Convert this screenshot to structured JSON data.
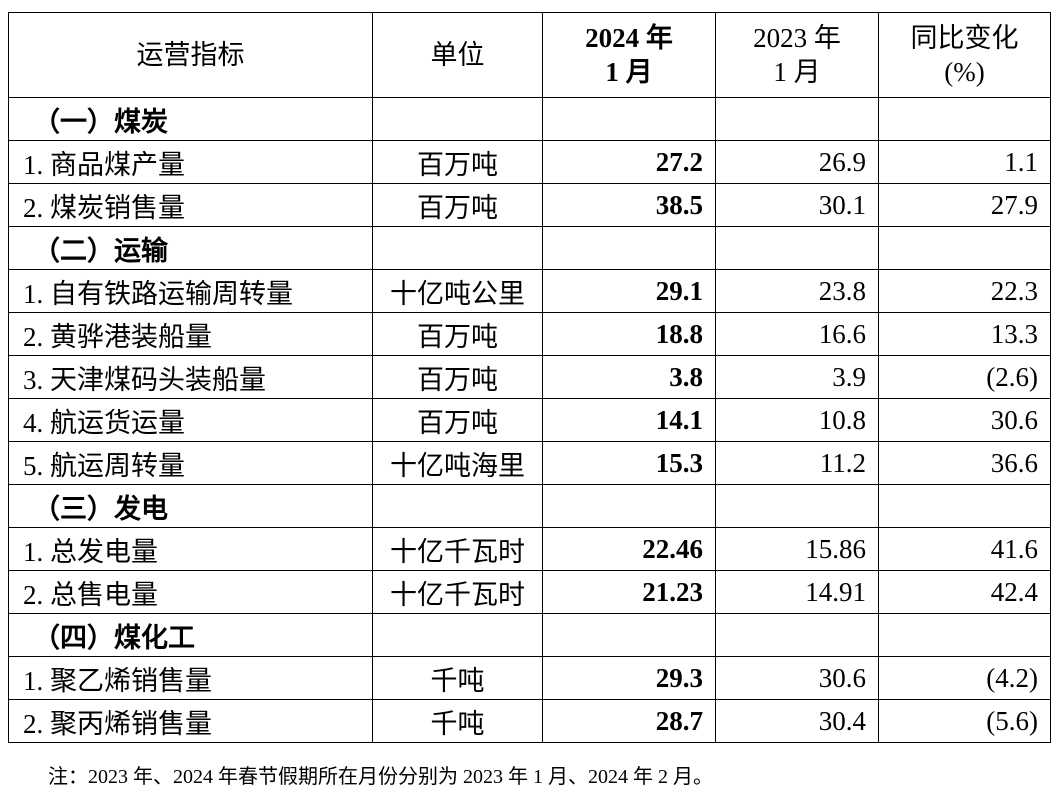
{
  "table": {
    "header": [
      [
        "运营指标"
      ],
      [
        "单位"
      ],
      [
        "2024 年",
        "1 月"
      ],
      [
        "2023 年",
        "1 月"
      ],
      [
        "同比变化",
        "(%)"
      ]
    ],
    "rows": [
      {
        "section": "（一）煤炭"
      },
      {
        "cells": [
          "1. 商品煤产量",
          "百万吨",
          "27.2",
          "26.9",
          "1.1"
        ]
      },
      {
        "cells": [
          "2. 煤炭销售量",
          "百万吨",
          "38.5",
          "30.1",
          "27.9"
        ]
      },
      {
        "section": "（二）运输"
      },
      {
        "cells": [
          "1. 自有铁路运输周转量",
          "十亿吨公里",
          "29.1",
          "23.8",
          "22.3"
        ]
      },
      {
        "cells": [
          "2. 黄骅港装船量",
          "百万吨",
          "18.8",
          "16.6",
          "13.3"
        ]
      },
      {
        "cells": [
          "3. 天津煤码头装船量",
          "百万吨",
          "3.8",
          "3.9",
          "(2.6)"
        ]
      },
      {
        "cells": [
          "4. 航运货运量",
          "百万吨",
          "14.1",
          "10.8",
          "30.6"
        ]
      },
      {
        "cells": [
          "5. 航运周转量",
          "十亿吨海里",
          "15.3",
          "11.2",
          "36.6"
        ]
      },
      {
        "section": "（三）发电"
      },
      {
        "cells": [
          "1. 总发电量",
          "十亿千瓦时",
          "22.46",
          "15.86",
          "41.6"
        ]
      },
      {
        "cells": [
          "2. 总售电量",
          "十亿千瓦时",
          "21.23",
          "14.91",
          "42.4"
        ]
      },
      {
        "section": "（四）煤化工"
      },
      {
        "cells": [
          "1. 聚乙烯销售量",
          "千吨",
          "29.3",
          "30.6",
          "(4.2)"
        ]
      },
      {
        "cells": [
          "2. 聚丙烯销售量",
          "千吨",
          "28.7",
          "30.4",
          "(5.6)"
        ]
      }
    ]
  },
  "note": "注：2023 年、2024 年春节假期所在月份分别为 2023 年 1 月、2024 年 2 月。"
}
